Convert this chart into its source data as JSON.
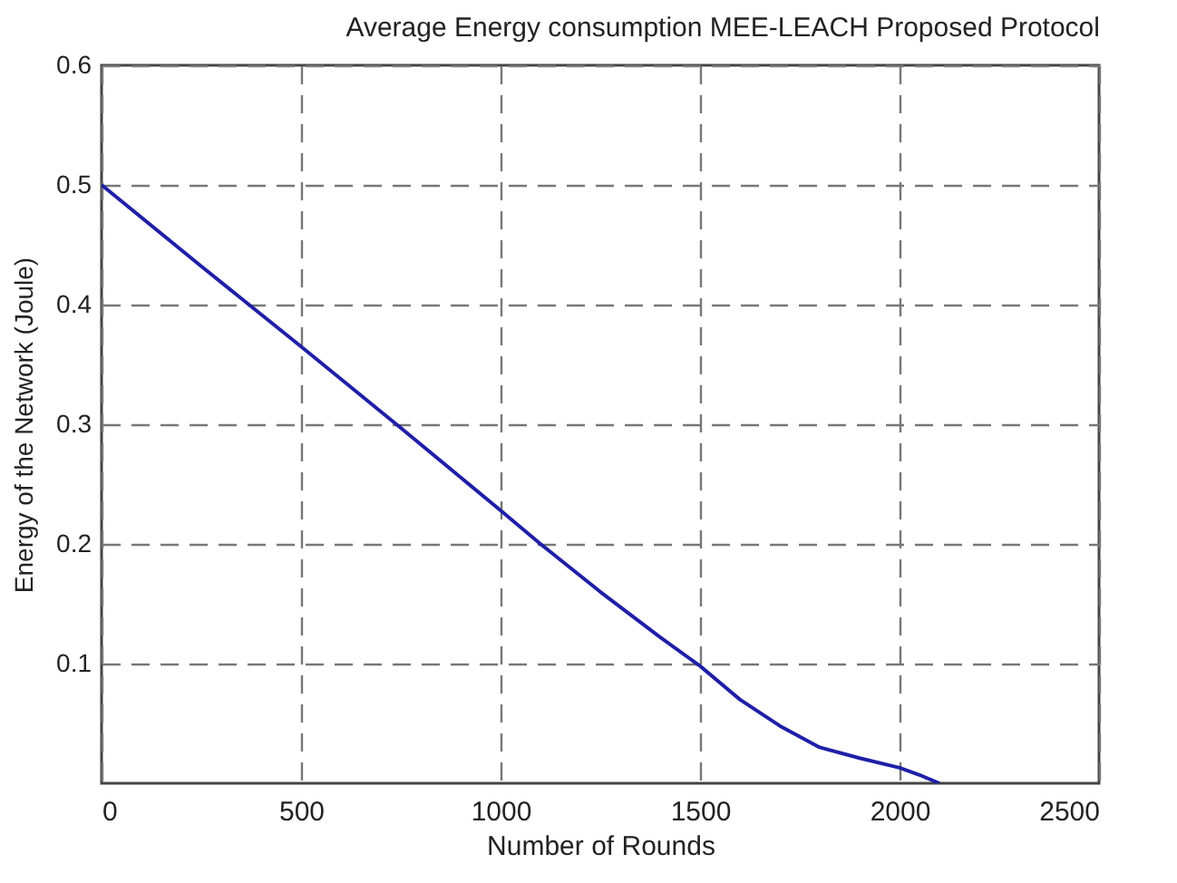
{
  "chart_data": {
    "type": "line",
    "title": "Average Energy consumption MEE-LEACH Proposed Protocol",
    "xlabel": "Number of Rounds",
    "ylabel": "Energy   of the   Network   (Joule)",
    "x": [
      0,
      250,
      500,
      750,
      1000,
      1100,
      1250,
      1400,
      1500,
      1600,
      1700,
      1800,
      1900,
      2000,
      2050,
      2100
    ],
    "series": [
      {
        "color": "#1f1fa8",
        "values": [
          0.5,
          0.432,
          0.365,
          0.297,
          0.228,
          0.2,
          0.16,
          0.122,
          0.098,
          0.07,
          0.048,
          0.03,
          0.021,
          0.013,
          0.007,
          0
        ]
      }
    ],
    "xlim": [
      0,
      2500
    ],
    "xticks": [
      0,
      500,
      1000,
      1500,
      2000,
      2500
    ],
    "ylim": [
      0,
      0.6
    ],
    "yticks": [
      0.1,
      0.2,
      0.3,
      0.4,
      0.5,
      0.6
    ],
    "grid": true,
    "line_style": "solid",
    "marker": "none"
  }
}
